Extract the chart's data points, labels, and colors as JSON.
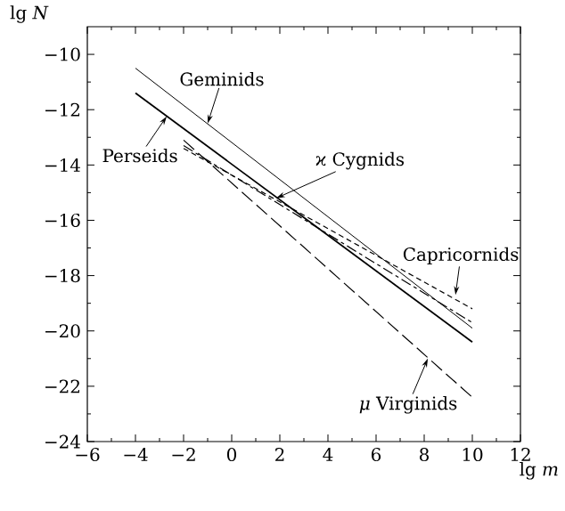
{
  "chart_data": {
    "type": "line",
    "xlabel": "lg *m*",
    "ylabel": "lg *N*",
    "xlim": [
      -6,
      12
    ],
    "ylim": [
      -24,
      -9
    ],
    "xticks": [
      {
        "value": -6,
        "label": "−6"
      },
      {
        "value": -4,
        "label": "−4"
      },
      {
        "value": -2,
        "label": "−2"
      },
      0,
      2,
      4,
      6,
      8,
      10,
      12
    ],
    "yticks": [
      {
        "value": -24,
        "label": "−24"
      },
      {
        "value": -22,
        "label": "−22"
      },
      {
        "value": -20,
        "label": "−20"
      },
      {
        "value": -18,
        "label": "−18"
      },
      {
        "value": -16,
        "label": "−16"
      },
      {
        "value": -14,
        "label": "−14"
      },
      {
        "value": -12,
        "label": "−12"
      },
      {
        "value": -10,
        "label": "−10"
      }
    ],
    "grid": false,
    "marker": "none",
    "series": [
      {
        "color": "#000000",
        "line_style": "solid",
        "x": [
          -4,
          10
        ],
        "values": [
          -10.5,
          -19.9
        ]
      },
      {
        "color": "#000000",
        "line_style": "solid",
        "x": [
          -4,
          10
        ],
        "values": [
          -11.4,
          -20.4
        ]
      },
      {
        "color": "#000000",
        "line_style": "dashdot",
        "x": [
          -2,
          10
        ],
        "values": [
          -13.3,
          -19.7
        ]
      },
      {
        "color": "#000000",
        "line_style": "dashed",
        "x": [
          -2,
          10
        ],
        "values": [
          -13.4,
          -19.2
        ]
      },
      {
        "color": "#000000",
        "line_style": "longdashed",
        "x": [
          -2,
          10
        ],
        "values": [
          -13.1,
          -22.4
        ]
      }
    ],
    "annotations": [
      {
        "text": "Geminids",
        "x": -1,
        "y": -12.5
      },
      {
        "text": "Perseids",
        "x": -2.7,
        "y": -12.24
      },
      {
        "text": "ϰ Cygnids",
        "x": 1.85,
        "y": -15.2
      },
      {
        "text": "Capricornids",
        "x": 9.3,
        "y": -18.7
      },
      {
        "text": "*μ* Virginids",
        "x": 8.15,
        "y": -21
      }
    ]
  }
}
